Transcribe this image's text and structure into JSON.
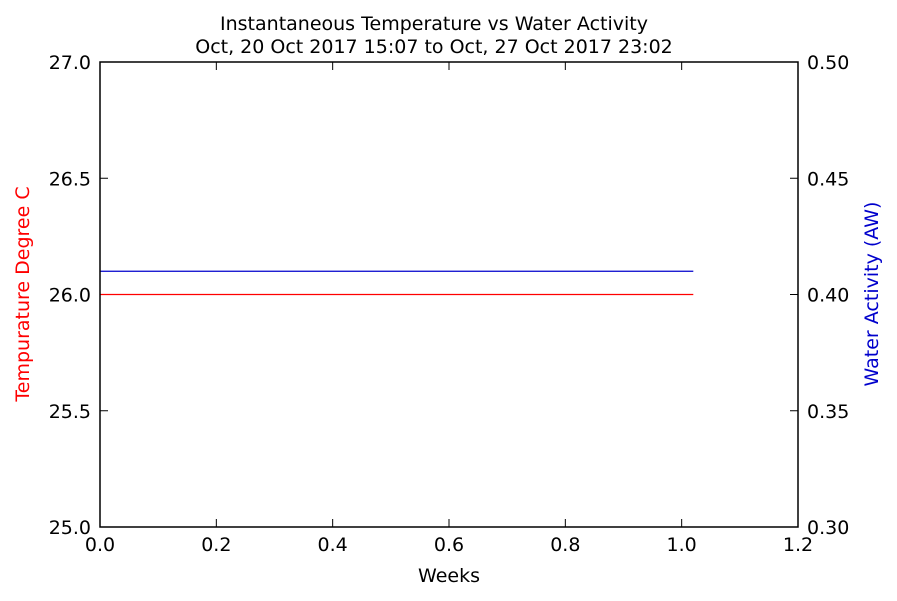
{
  "chart_data": {
    "type": "line",
    "title": "Instantaneous Temperature vs Water Activity",
    "subtitle": "Oct, 20 Oct 2017 15:07 to Oct, 27 Oct 2017 23:02",
    "xlabel": "Weeks",
    "ylabel_left": "Tempurature Degree C",
    "ylabel_right": "Water Activity (AW)",
    "xlim": [
      0.0,
      1.2
    ],
    "ylim_left": [
      25.0,
      27.0
    ],
    "ylim_right": [
      0.3,
      0.5
    ],
    "x_ticks": [
      "0.0",
      "0.2",
      "0.4",
      "0.6",
      "0.8",
      "1.0",
      "1.2"
    ],
    "y_left_ticks": [
      "25.0",
      "25.5",
      "26.0",
      "26.5",
      "27.0"
    ],
    "y_right_ticks": [
      "0.30",
      "0.35",
      "0.40",
      "0.45",
      "0.50"
    ],
    "grid": false,
    "series": [
      {
        "axis": "left",
        "color": "#ff0000",
        "x": [
          0.0,
          1.02
        ],
        "y": [
          26.0,
          26.0
        ]
      },
      {
        "axis": "right",
        "color": "#0000cc",
        "x": [
          0.0,
          1.02
        ],
        "y": [
          0.41,
          0.41
        ]
      }
    ],
    "colors": {
      "left_label": "#ff0000",
      "right_label": "#0000cc",
      "axes": "#000000"
    }
  }
}
